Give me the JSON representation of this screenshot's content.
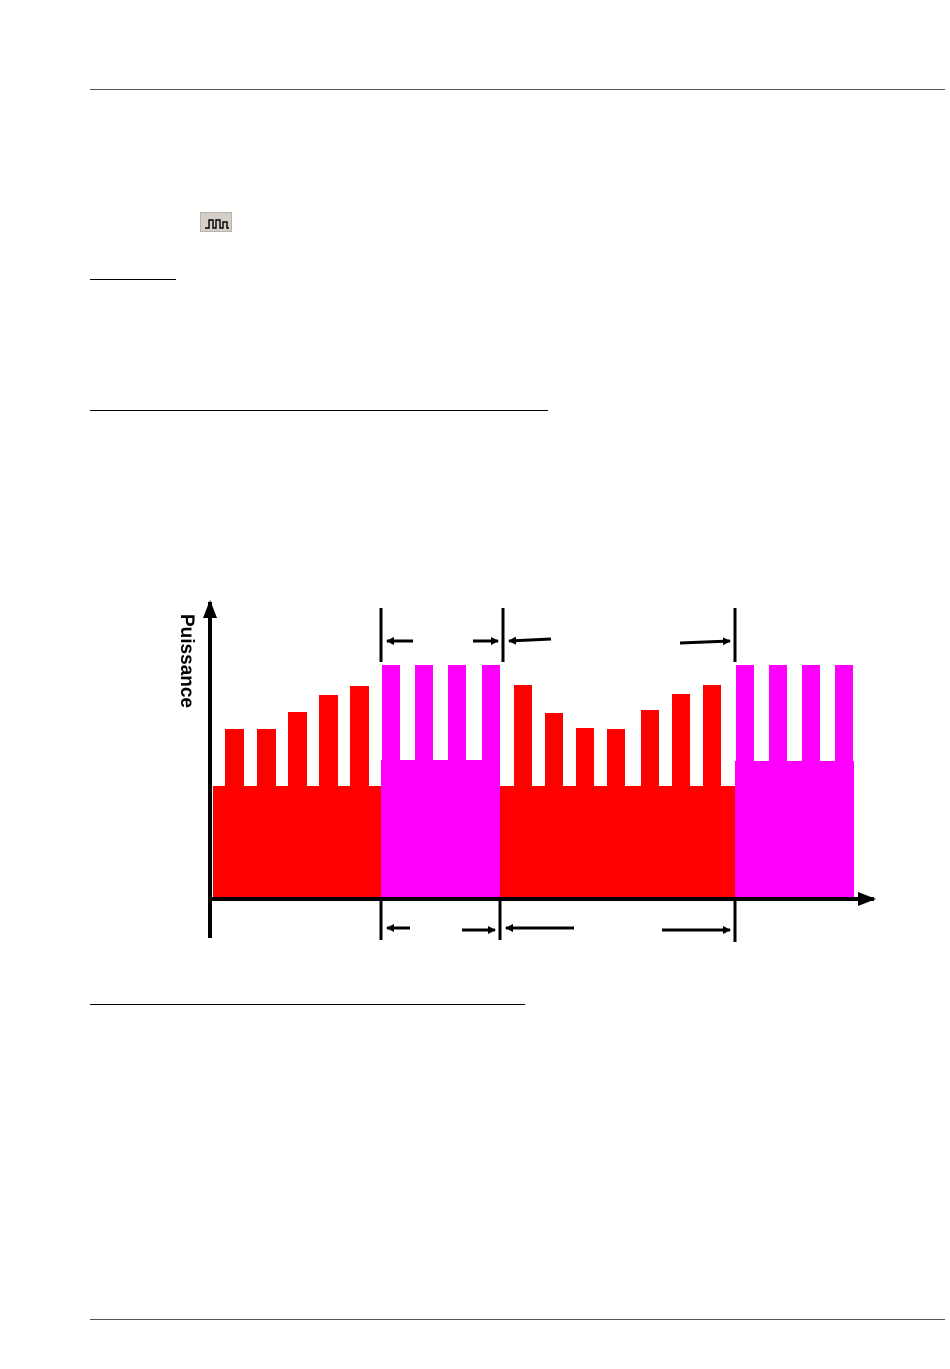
{
  "page": {
    "icons": {
      "toolbar": "pulse-train-icon"
    }
  },
  "figure": {
    "ylabel": "Puissance",
    "colors": {
      "base_phase": "#ff0000",
      "boost_phase": "#ff00ff",
      "axis": "#000000"
    }
  }
}
